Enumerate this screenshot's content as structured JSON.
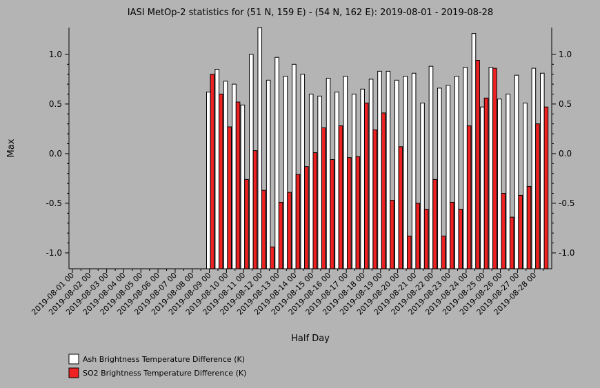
{
  "chart_data": {
    "type": "bar",
    "title": "IASI MetOp-2 statistics for (51 N, 159 E) - (54 N, 162 E): 2019-08-01 - 2019-08-28",
    "xlabel": "Half Day",
    "ylabel": "Max",
    "categories": [
      "2019-08-01 00",
      null,
      "2019-08-02 00",
      null,
      "2019-08-03 00",
      null,
      "2019-08-04 00",
      null,
      "2019-08-05 00",
      null,
      "2019-08-06 00",
      null,
      "2019-08-07 00",
      null,
      "2019-08-08 00",
      null,
      "2019-08-09 00",
      null,
      "2019-08-10 00",
      null,
      "2019-08-11 00",
      null,
      "2019-08-12 00",
      null,
      "2019-08-13 00",
      null,
      "2019-08-14 00",
      null,
      "2019-08-15 00",
      null,
      "2019-08-16 00",
      null,
      "2019-08-17 00",
      null,
      "2019-08-18 00",
      null,
      "2019-08-19 00",
      null,
      "2019-08-20 00",
      null,
      "2019-08-21 00",
      null,
      "2019-08-22 00",
      null,
      "2019-08-23 00",
      null,
      "2019-08-24 00",
      null,
      "2019-08-25 00",
      null,
      "2019-08-26 00",
      null,
      "2019-08-27 00",
      null,
      "2019-08-28 00",
      null
    ],
    "series": [
      {
        "name": "Ash Brightness Temperature Difference (K)",
        "color": "#ffffff",
        "values": [
          null,
          null,
          null,
          null,
          null,
          null,
          null,
          null,
          null,
          null,
          null,
          null,
          null,
          null,
          null,
          null,
          0.62,
          0.85,
          0.73,
          0.7,
          0.49,
          1.0,
          1.27,
          0.74,
          0.97,
          0.78,
          0.9,
          0.8,
          0.6,
          0.58,
          0.76,
          0.62,
          0.78,
          0.6,
          0.65,
          0.75,
          0.83,
          0.83,
          0.74,
          0.78,
          0.81,
          0.51,
          0.88,
          0.66,
          0.69,
          0.78,
          0.87,
          1.21,
          0.47,
          0.87,
          0.55,
          0.6,
          0.79,
          0.51,
          0.86,
          0.81
        ]
      },
      {
        "name": "SO2 Brightness Temperature Difference (K)",
        "color": "#ee2222",
        "values": [
          null,
          null,
          null,
          null,
          null,
          null,
          null,
          null,
          null,
          null,
          null,
          null,
          null,
          null,
          null,
          null,
          0.8,
          0.6,
          0.27,
          0.52,
          -0.26,
          0.03,
          -0.37,
          -0.94,
          -0.49,
          -0.39,
          -0.21,
          -0.13,
          0.01,
          0.26,
          -0.06,
          0.28,
          -0.04,
          -0.03,
          0.51,
          0.24,
          0.41,
          -0.47,
          0.07,
          -0.83,
          -0.5,
          -0.56,
          -0.26,
          -0.83,
          -0.49,
          -0.56,
          0.28,
          0.94,
          0.56,
          0.86,
          -0.4,
          -0.64,
          -0.42,
          -0.33,
          0.3,
          0.47
        ]
      }
    ],
    "ylim": [
      -1.16,
      1.27
    ],
    "yticks": [
      {
        "value": -1,
        "label": "-1.0"
      },
      {
        "value": -0.5,
        "label": "-0.5"
      },
      {
        "value": 0,
        "label": "0.0"
      },
      {
        "value": 0.5,
        "label": "0.5"
      },
      {
        "value": 1,
        "label": "1.0"
      }
    ]
  }
}
